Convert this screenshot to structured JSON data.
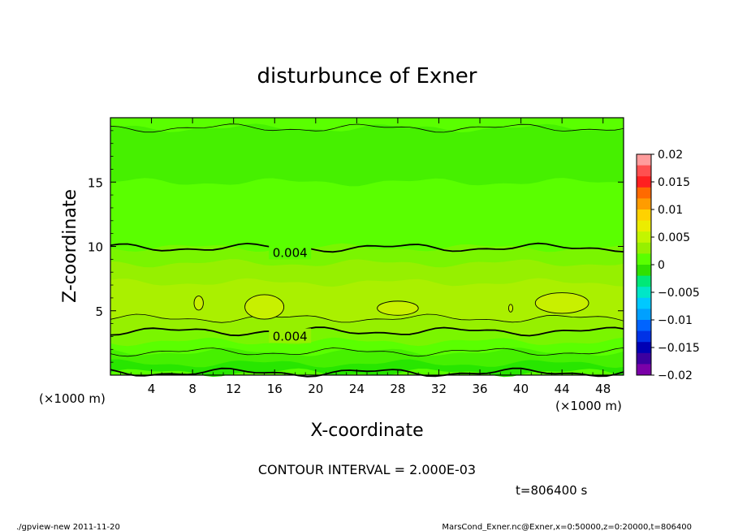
{
  "chart_data": {
    "type": "heatmap",
    "title": "disturbunce of Exner",
    "xlabel": "X-coordinate",
    "ylabel": "Z-coordinate",
    "x_unit_left": "(×1000 m)",
    "x_unit_right": "(×1000 m)",
    "xlim": [
      0,
      50
    ],
    "ylim": [
      0,
      20
    ],
    "x_ticks": [
      4,
      8,
      12,
      16,
      20,
      24,
      28,
      32,
      36,
      40,
      44,
      48
    ],
    "y_ticks": [
      5,
      10,
      15
    ],
    "contour_labels": [
      {
        "text": "0.004",
        "x": 17.5,
        "z": 9.5
      },
      {
        "text": "0.004",
        "x": 17.5,
        "z": 3.0
      }
    ],
    "colorbar": {
      "ticks": [
        "0.02",
        "0.015",
        "0.01",
        "0.005",
        "0",
        "−0.005",
        "−0.01",
        "−0.015",
        "−0.02"
      ],
      "colors": [
        "#ff9c9c",
        "#ff5050",
        "#ff2020",
        "#ff6a00",
        "#ff9c00",
        "#ffd200",
        "#ecec00",
        "#c3f500",
        "#96f000",
        "#5aff00",
        "#30e000",
        "#00e878",
        "#00e6c8",
        "#00c8ff",
        "#00a0ff",
        "#0064ff",
        "#0032e6",
        "#0000b4",
        "#3c00a0",
        "#7a00a8"
      ]
    },
    "bands": [
      {
        "z": 0.2,
        "color": "#28e600"
      },
      {
        "z": 0.9,
        "color": "#46f000"
      },
      {
        "z": 1.8,
        "color": "#5aff00"
      },
      {
        "z": 2.6,
        "color": "#7af500"
      },
      {
        "z": 3.4,
        "color": "#96f000"
      },
      {
        "z": 4.4,
        "color": "#aaf000"
      },
      {
        "z": 7.2,
        "color": "#96f000"
      },
      {
        "z": 8.7,
        "color": "#7af500"
      },
      {
        "z": 9.9,
        "color": "#5aff00"
      },
      {
        "z": 12.4,
        "color": "#5aff00"
      },
      {
        "z": 15.0,
        "color": "#46f000"
      },
      {
        "z": 19.2,
        "color": "#5aff00"
      }
    ],
    "contour_interval_text": "CONTOUR INTERVAL = 2.000E-03",
    "time_text": "t=806400 s"
  },
  "footer": {
    "left": "./gpview-new   2011-11-20",
    "right": "MarsCond_Exner.nc@Exner,x=0:50000,z=0:20000,t=806400"
  }
}
